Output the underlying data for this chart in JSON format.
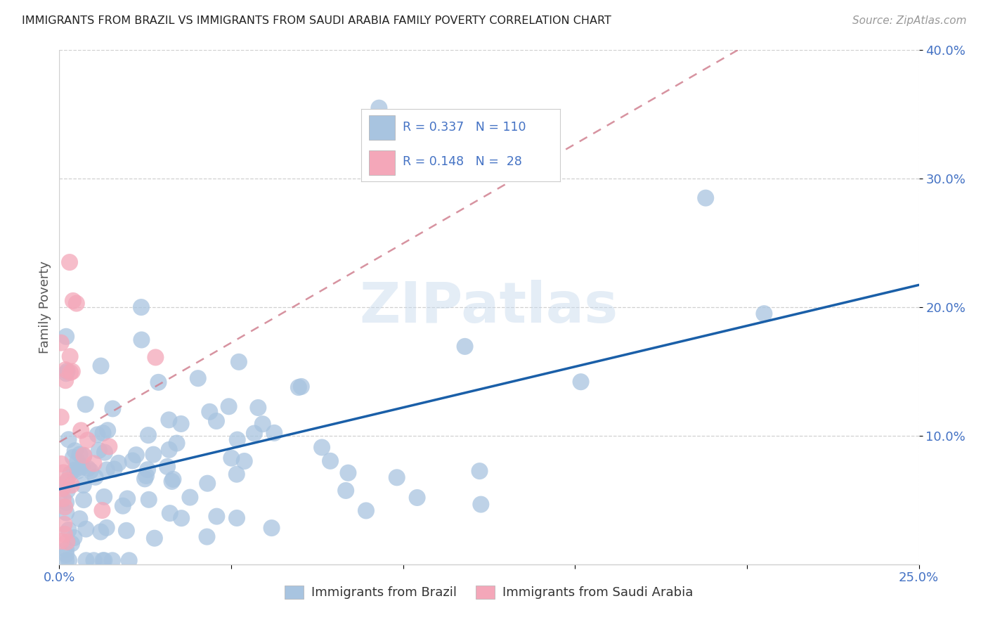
{
  "title": "IMMIGRANTS FROM BRAZIL VS IMMIGRANTS FROM SAUDI ARABIA FAMILY POVERTY CORRELATION CHART",
  "source": "Source: ZipAtlas.com",
  "xlabel_brazil": "Immigrants from Brazil",
  "xlabel_saudi": "Immigrants from Saudi Arabia",
  "ylabel": "Family Poverty",
  "xlim": [
    0.0,
    0.25
  ],
  "ylim": [
    0.0,
    0.4
  ],
  "brazil_color": "#a8c4e0",
  "saudi_color": "#f4a7b9",
  "brazil_line_color": "#1a5fa8",
  "saudi_line_color": "#d08090",
  "brazil_R": 0.337,
  "brazil_N": 110,
  "saudi_R": 0.148,
  "saudi_N": 28,
  "watermark": "ZIPatlas",
  "tick_color": "#4472c4",
  "label_color": "#555555",
  "grid_color": "#d0d0d0"
}
